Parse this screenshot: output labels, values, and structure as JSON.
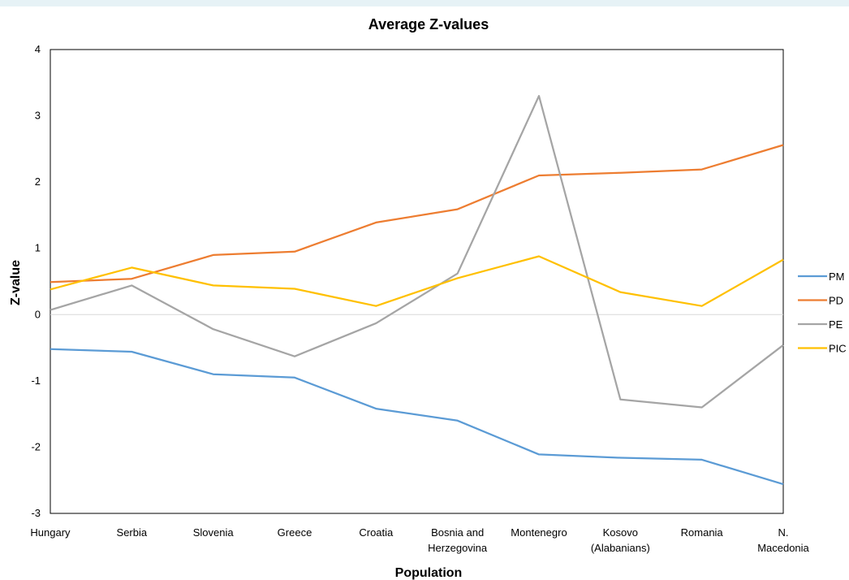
{
  "chart_data": {
    "type": "line",
    "title": "Average Z-values",
    "xlabel": "Population",
    "ylabel": "Z-value",
    "ylim": [
      -3,
      4
    ],
    "yticks": [
      4,
      3,
      2,
      1,
      0,
      -1,
      -2,
      -3
    ],
    "categories": [
      [
        "Hungary"
      ],
      [
        "Serbia"
      ],
      [
        "Slovenia"
      ],
      [
        "Greece"
      ],
      [
        "Croatia"
      ],
      [
        "Bosnia and",
        "Herzegovina"
      ],
      [
        "Montenegro"
      ],
      [
        "Kosovo",
        "(Alabanians)"
      ],
      [
        "Romania"
      ],
      [
        "N.",
        "Macedonia"
      ]
    ],
    "series": [
      {
        "name": "PM",
        "color": "#5b9bd5",
        "values": [
          -0.52,
          -0.56,
          -0.9,
          -0.95,
          -1.42,
          -1.6,
          -2.11,
          -2.16,
          -2.19,
          -2.56
        ]
      },
      {
        "name": "PD",
        "color": "#ed7d31",
        "values": [
          0.49,
          0.54,
          0.9,
          0.95,
          1.39,
          1.59,
          2.1,
          2.14,
          2.19,
          2.56
        ]
      },
      {
        "name": "PE",
        "color": "#a5a5a5",
        "values": [
          0.07,
          0.44,
          -0.22,
          -0.63,
          -0.13,
          0.62,
          3.3,
          -1.28,
          -1.4,
          -0.46
        ]
      },
      {
        "name": "PIC",
        "color": "#ffc000",
        "values": [
          0.38,
          0.71,
          0.44,
          0.39,
          0.13,
          0.55,
          0.88,
          0.34,
          0.13,
          0.83
        ]
      }
    ],
    "legend_position": "right",
    "grid": false
  }
}
